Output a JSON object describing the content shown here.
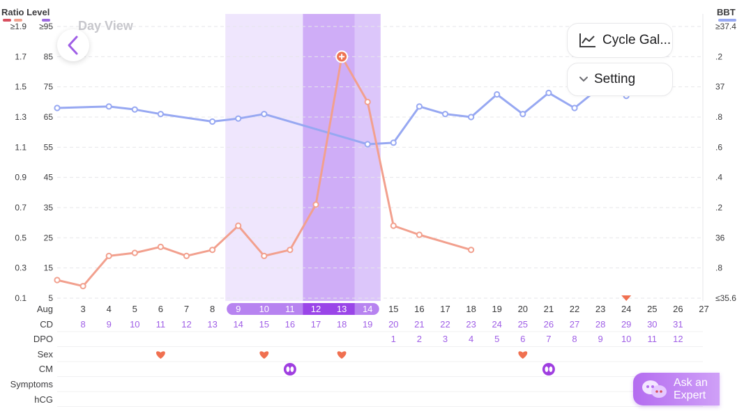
{
  "header": {
    "left_title": "Ratio Level",
    "right_title": "BBT",
    "ratio_max_label": "≥1.9",
    "level_max_label": "≥95",
    "bbt_max_label": "≥37.4",
    "day_view": "Day View"
  },
  "buttons": {
    "cycle_gallery": "Cycle Gal...",
    "setting": "Setting",
    "ask_expert": "Ask an Expert"
  },
  "colors": {
    "ratio_line": "#f2a08e",
    "bbt_line": "#97a8f2",
    "fertile_light": "#efe6fd",
    "fertile_mid": "#dcc6fa",
    "fertile_peak": "#cfadf7",
    "day_pill": "#b783f0",
    "day_pill_peak": "#9a45e8",
    "accent_purple": "#9f5ee6",
    "legend_ratio_dark": "#d84f5f",
    "legend_ratio_light": "#f2a08e",
    "legend_level": "#9d6ae0",
    "legend_bbt": "#97a8f2",
    "heart": "#f07050",
    "row_label": "#3a3a3c"
  },
  "chart_data": {
    "type": "line",
    "title": "",
    "xlabel": "Aug",
    "x": [
      2,
      3,
      4,
      5,
      6,
      7,
      8,
      9,
      10,
      11,
      12,
      13,
      14,
      15,
      16,
      17,
      18,
      19,
      20,
      21,
      22,
      23,
      24,
      25,
      26,
      27
    ],
    "left_axis": {
      "ratio_ticks": [
        "≥1.9",
        "1.7",
        "1.5",
        "1.3",
        "1.1",
        "0.9",
        "0.7",
        "0.5",
        "0.3",
        "0.1"
      ],
      "level_ticks": [
        "≥95",
        "85",
        "75",
        "65",
        "55",
        "45",
        "35",
        "25",
        "15",
        "5"
      ],
      "level_range": [
        5,
        95
      ]
    },
    "right_axis": {
      "label": "BBT",
      "ticks": [
        "≥37.4",
        ".2",
        "37",
        ".8",
        ".6",
        ".4",
        ".2",
        "36",
        ".8",
        "≤35.6"
      ],
      "range": [
        35.6,
        37.4
      ]
    },
    "series": [
      {
        "name": "Ratio Level",
        "axis": "left-level",
        "x": [
          2,
          3,
          4,
          5,
          6,
          7,
          8,
          9,
          10,
          11,
          12,
          13,
          14,
          15,
          16,
          18
        ],
        "values": [
          11,
          9,
          19,
          20,
          22,
          19,
          21,
          29,
          19,
          21,
          36,
          85,
          70,
          29,
          26,
          21
        ],
        "peak_index": 11
      },
      {
        "name": "BBT",
        "axis": "right",
        "x": [
          2,
          4,
          5,
          6,
          8,
          9,
          10,
          14,
          15,
          16,
          17,
          18,
          19,
          20,
          21,
          22,
          23,
          24
        ],
        "values": [
          36.86,
          36.87,
          36.85,
          36.82,
          36.77,
          36.79,
          36.82,
          36.62,
          36.63,
          36.87,
          36.82,
          36.8,
          36.95,
          36.82,
          36.96,
          36.86,
          37.0,
          36.94
        ]
      }
    ],
    "fertile_window": {
      "light": [
        9,
        14
      ],
      "peak": [
        12,
        13
      ],
      "right_mid": [
        14,
        14
      ]
    },
    "ovulation_marker_day": 24,
    "rows": [
      {
        "label": "Aug",
        "type": "dates"
      },
      {
        "label": "CD",
        "values": [
          "8",
          "9",
          "10",
          "11",
          "12",
          "13",
          "14",
          "15",
          "16",
          "17",
          "18",
          "19",
          "20",
          "21",
          "22",
          "23",
          "24",
          "25",
          "26",
          "27",
          "28",
          "29",
          "30",
          "31"
        ],
        "start_day": 3
      },
      {
        "label": "DPO",
        "values": [
          "1",
          "2",
          "3",
          "4",
          "5",
          "6",
          "7",
          "8",
          "9",
          "10",
          "11",
          "12"
        ],
        "start_day": 15
      },
      {
        "label": "Sex",
        "days": [
          6,
          10,
          13,
          20
        ],
        "icon": "heart-icon"
      },
      {
        "label": "CM",
        "days": [
          11,
          21
        ],
        "icon": "cervical-mucus-icon"
      },
      {
        "label": "Symptoms",
        "days": []
      },
      {
        "label": "hCG",
        "days": []
      }
    ]
  }
}
